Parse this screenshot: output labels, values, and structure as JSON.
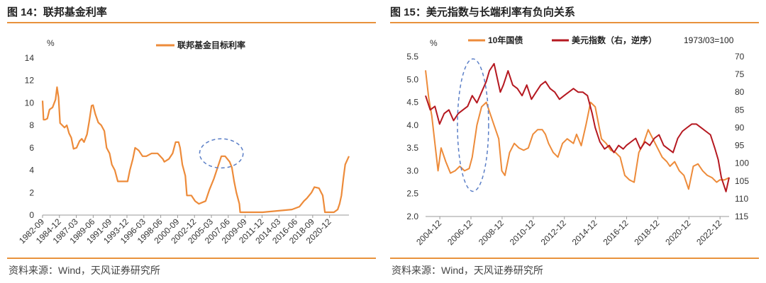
{
  "left": {
    "title": "图 14：联邦基金利率",
    "source": "资料来源：Wind，天风证券研究所",
    "chart_data": {
      "type": "line",
      "unit": "%",
      "ylim": [
        0,
        14
      ],
      "yticks": [
        0,
        2,
        4,
        6,
        8,
        10,
        12,
        14
      ],
      "xticks": [
        "1982-09",
        "1984-12",
        "1987-03",
        "1989-06",
        "1991-09",
        "1993-12",
        "1996-03",
        "1998-06",
        "2000-09",
        "2002-12",
        "2005-03",
        "2007-06",
        "2009-09",
        "2011-12",
        "2014-03",
        "2016-06",
        "2018-09",
        "2020-12"
      ],
      "xlim": [
        1982.67,
        2023.5
      ],
      "series": [
        {
          "name": "联邦基金目标利率",
          "color": "#ED8B3A",
          "x": [
            1982.67,
            1982.8,
            1983.0,
            1983.3,
            1983.6,
            1984.0,
            1984.4,
            1984.6,
            1984.8,
            1985.0,
            1985.3,
            1985.6,
            1985.9,
            1986.2,
            1986.5,
            1986.8,
            1987.2,
            1987.6,
            1987.9,
            1988.2,
            1988.6,
            1988.9,
            1989.2,
            1989.4,
            1989.7,
            1990.1,
            1990.5,
            1990.9,
            1991.2,
            1991.6,
            1991.9,
            1992.3,
            1992.7,
            1993.0,
            1993.5,
            1994.0,
            1994.3,
            1994.7,
            1995.0,
            1995.5,
            1996.0,
            1996.5,
            1997.2,
            1998.0,
            1998.7,
            1998.9,
            1999.5,
            2000.0,
            2000.4,
            2000.8,
            2001.0,
            2001.3,
            2001.7,
            2001.9,
            2002.5,
            2003.0,
            2003.5,
            2004.4,
            2004.9,
            2005.5,
            2006.5,
            2007.0,
            2007.6,
            2007.9,
            2008.2,
            2008.5,
            2008.9,
            2009.0,
            2012.0,
            2015.9,
            2016.9,
            2017.5,
            2017.9,
            2018.5,
            2018.9,
            2019.5,
            2019.8,
            2020.0,
            2020.15,
            2020.3,
            2021.5,
            2022.0,
            2022.25,
            2022.5,
            2022.75,
            2023.0,
            2023.5
          ],
          "values": [
            10.2,
            8.5,
            8.5,
            8.6,
            9.4,
            9.6,
            10.3,
            11.4,
            10.5,
            8.2,
            8.0,
            7.8,
            8.0,
            7.3,
            6.9,
            5.9,
            6.0,
            6.6,
            6.8,
            6.5,
            7.2,
            8.4,
            9.75,
            9.8,
            9.0,
            8.25,
            8.0,
            7.5,
            6.0,
            5.5,
            4.5,
            4.0,
            3.0,
            3.0,
            3.0,
            3.0,
            4.0,
            5.0,
            6.0,
            5.75,
            5.25,
            5.25,
            5.5,
            5.5,
            5.0,
            4.75,
            5.0,
            5.5,
            6.5,
            6.5,
            6.0,
            4.5,
            3.5,
            1.75,
            1.75,
            1.25,
            1.0,
            1.25,
            2.25,
            3.25,
            5.25,
            5.25,
            4.75,
            4.25,
            3.0,
            2.0,
            1.0,
            0.25,
            0.25,
            0.5,
            0.75,
            1.25,
            1.5,
            2.0,
            2.5,
            2.4,
            2.0,
            1.75,
            1.0,
            0.25,
            0.25,
            0.5,
            1.0,
            1.75,
            3.25,
            4.5,
            5.25
          ]
        }
      ],
      "annotation": {
        "shape": "dashed-ellipse",
        "color": "#5B7FC7",
        "center": {
          "x": 2006.5,
          "y": 5.5
        },
        "rx": 2.9,
        "ry": 1.3
      }
    }
  },
  "right": {
    "title": "图 15：美元指数与长端利率有负向关系",
    "source": "资料来源：Wind，天风证券研究所",
    "chart_data": {
      "type": "line",
      "ylim_left": [
        2.0,
        5.5
      ],
      "yticks_left": [
        2.0,
        2.5,
        3.0,
        3.5,
        4.0,
        4.5,
        5.0,
        5.5
      ],
      "ylim_right": [
        70,
        115
      ],
      "ylim_right_inverted": true,
      "yticks_right": [
        70,
        75,
        80,
        85,
        90,
        95,
        100,
        105,
        110,
        115
      ],
      "xticks": [
        "2004-12",
        "2006-12",
        "2008-12",
        "2010-12",
        "2012-12",
        "2014-12",
        "2016-12",
        "2018-12",
        "2020-12",
        "2022-12"
      ],
      "xlim": [
        2004.0,
        2023.5
      ],
      "note": "1973/03=100",
      "series": [
        {
          "name": "10年国债",
          "axis": "left",
          "color": "#ED8B3A",
          "x": [
            2004.0,
            2004.2,
            2004.4,
            2004.6,
            2004.8,
            2005.0,
            2005.3,
            2005.6,
            2005.9,
            2006.2,
            2006.5,
            2006.8,
            2007.0,
            2007.3,
            2007.6,
            2007.9,
            2008.2,
            2008.4,
            2008.7,
            2008.9,
            2009.1,
            2009.4,
            2009.7,
            2010.0,
            2010.3,
            2010.6,
            2010.9,
            2011.2,
            2011.5,
            2011.7,
            2011.9,
            2012.2,
            2012.5,
            2012.8,
            2013.1,
            2013.5,
            2013.7,
            2014.0,
            2014.3,
            2014.6,
            2014.9,
            2015.3,
            2015.6,
            2015.9,
            2016.2,
            2016.5,
            2016.8,
            2017.1,
            2017.4,
            2017.7,
            2018.0,
            2018.3,
            2018.6,
            2018.9,
            2019.2,
            2019.5,
            2019.7,
            2020.0,
            2020.3,
            2020.6,
            2020.9,
            2021.2,
            2021.5,
            2021.8,
            2022.1,
            2022.4,
            2022.7,
            2022.9,
            2023.2,
            2023.5
          ],
          "values": [
            5.2,
            4.6,
            4.2,
            3.6,
            3.0,
            3.5,
            3.2,
            2.95,
            3.0,
            3.1,
            3.0,
            3.05,
            3.3,
            4.0,
            4.4,
            4.5,
            4.2,
            4.0,
            3.7,
            3.0,
            2.9,
            3.4,
            3.6,
            3.5,
            3.45,
            3.5,
            3.8,
            3.9,
            3.9,
            3.8,
            3.6,
            3.4,
            3.3,
            3.6,
            3.7,
            3.6,
            3.8,
            3.55,
            4.0,
            4.5,
            4.4,
            3.7,
            3.6,
            3.45,
            3.4,
            3.3,
            2.9,
            2.8,
            2.75,
            3.4,
            3.6,
            3.9,
            3.7,
            3.5,
            3.3,
            3.2,
            3.1,
            3.2,
            3.0,
            2.9,
            2.6,
            3.1,
            3.15,
            3.0,
            2.9,
            2.85,
            2.75,
            2.8,
            2.8,
            2.85
          ]
        },
        {
          "name": "美元指数（右，逆序）",
          "axis": "right",
          "color": "#B51820",
          "x": [
            2004.0,
            2004.3,
            2004.6,
            2004.9,
            2005.2,
            2005.5,
            2005.8,
            2006.1,
            2006.4,
            2006.7,
            2007.0,
            2007.3,
            2007.6,
            2007.9,
            2008.1,
            2008.4,
            2008.6,
            2008.8,
            2009.0,
            2009.3,
            2009.6,
            2009.9,
            2010.2,
            2010.5,
            2010.8,
            2011.1,
            2011.4,
            2011.7,
            2012.0,
            2012.3,
            2012.6,
            2012.9,
            2013.2,
            2013.5,
            2013.8,
            2014.1,
            2014.4,
            2014.7,
            2014.9,
            2015.2,
            2015.5,
            2015.8,
            2016.1,
            2016.4,
            2016.7,
            2016.9,
            2017.2,
            2017.5,
            2017.8,
            2018.1,
            2018.4,
            2018.7,
            2019.0,
            2019.3,
            2019.6,
            2019.9,
            2020.2,
            2020.5,
            2020.8,
            2021.1,
            2021.4,
            2021.7,
            2022.0,
            2022.3,
            2022.6,
            2022.8,
            2023.0,
            2023.3,
            2023.5
          ],
          "values": [
            81,
            85,
            84,
            89,
            86,
            85,
            88,
            86,
            85,
            84,
            81,
            83,
            80,
            77,
            74,
            72,
            76,
            80,
            78,
            74,
            78,
            79,
            81,
            78,
            82,
            80,
            78,
            77,
            79,
            80,
            82,
            81,
            80,
            79,
            80,
            80,
            81,
            86,
            90,
            94,
            96,
            95,
            97,
            95,
            96,
            95,
            94,
            93,
            96,
            94,
            95,
            93,
            92,
            95,
            96,
            97,
            93,
            91,
            90,
            89,
            89,
            90,
            91,
            92,
            96,
            99,
            104,
            108,
            104
          ]
        }
      ],
      "annotation": {
        "shape": "dashed-ellipse",
        "color": "#5B7FC7",
        "center": {
          "x": 2007.05,
          "y": 4.0
        },
        "rx": 1.0,
        "ry": 1.45
      }
    }
  }
}
